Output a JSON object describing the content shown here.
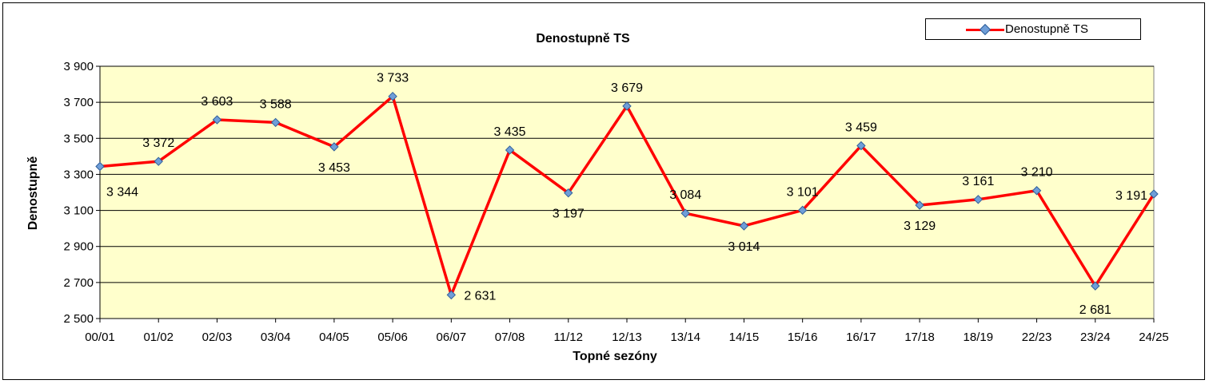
{
  "chart_data": {
    "type": "line",
    "title": "Denostupně  TS",
    "xlabel": "Topné sezóny",
    "ylabel": "Denostupně",
    "ylim": [
      2500,
      3900
    ],
    "yticks": [
      2500,
      2700,
      2900,
      3100,
      3300,
      3500,
      3700,
      3900
    ],
    "ytick_labels": [
      "2 500",
      "2 700",
      "2 900",
      "3 100",
      "3 300",
      "3 500",
      "3 700",
      "3 900"
    ],
    "grid": true,
    "legend_position": "top-right",
    "plot_background": "#ffffcc",
    "categories": [
      "00/01",
      "01/02",
      "02/03",
      "03/04",
      "04/05",
      "05/06",
      "06/07",
      "07/08",
      "11/12",
      "12/13",
      "13/14",
      "14/15",
      "15/16",
      "16/17",
      "17/18",
      "18/19",
      "22/23",
      "23/24",
      "24/25"
    ],
    "series": [
      {
        "name": "Denostupně  TS",
        "color": "#ff0000",
        "marker_color": "#6f9ed8",
        "values": [
          3344,
          3372,
          3603,
          3588,
          3453,
          3733,
          2631,
          3435,
          3197,
          3679,
          3084,
          3014,
          3101,
          3459,
          3129,
          3161,
          3210,
          2681,
          3191
        ],
        "data_labels": [
          "3 344",
          "3 372",
          "3 603",
          "3 588",
          "3 453",
          "3 733",
          "2 631",
          "3 435",
          "3 197",
          "3 679",
          "3 084",
          "3 014",
          "3 101",
          "3 459",
          "3 129",
          "3 161",
          "3 210",
          "2 681",
          "3 191"
        ]
      }
    ]
  }
}
